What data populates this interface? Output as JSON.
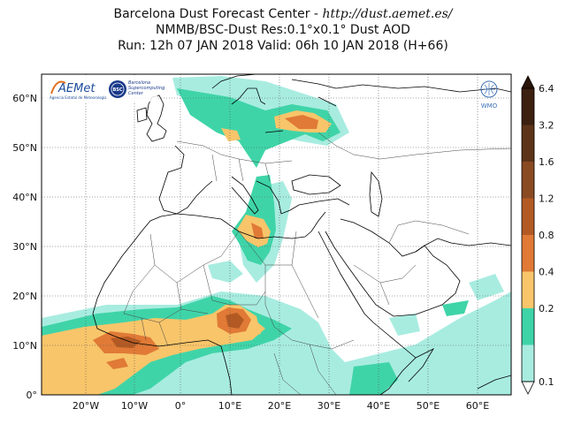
{
  "title": {
    "line1_prefix": "Barcelona Dust Forecast Center - ",
    "line1_url": "http://dust.aemet.es/",
    "line2": "NMMB/BSC-Dust   Res:0.1°x0.1°   Dust AOD",
    "line3": "Run: 12h 07 JAN 2018   Valid: 06h 10 JAN 2018 (H+66)"
  },
  "axes": {
    "lat_ticks": [
      "60°N",
      "50°N",
      "40°N",
      "30°N",
      "20°N",
      "10°N",
      "0°"
    ],
    "lon_ticks": [
      "20°W",
      "10°W",
      "0°",
      "10°E",
      "20°E",
      "30°E",
      "40°E",
      "50°E",
      "60°E"
    ]
  },
  "logos": {
    "aemet": "AEMet",
    "aemet_sub": "Agencia Estatal de Meteorología",
    "bsc": "BSC",
    "bsc_sub1": "Barcelona",
    "bsc_sub2": "Supercomputing",
    "bsc_sub3": "Center",
    "wmo": "WMO"
  },
  "colorbar": {
    "labels": [
      "6.4",
      "3.2",
      "1.6",
      "1.2",
      "0.8",
      "0.4",
      "0.2",
      "0.1"
    ],
    "colors": [
      "#3c2010",
      "#5c3418",
      "#8a4a22",
      "#b35a24",
      "#e07a36",
      "#f8c56a",
      "#3fd4a8",
      "#a8ece0"
    ]
  }
}
